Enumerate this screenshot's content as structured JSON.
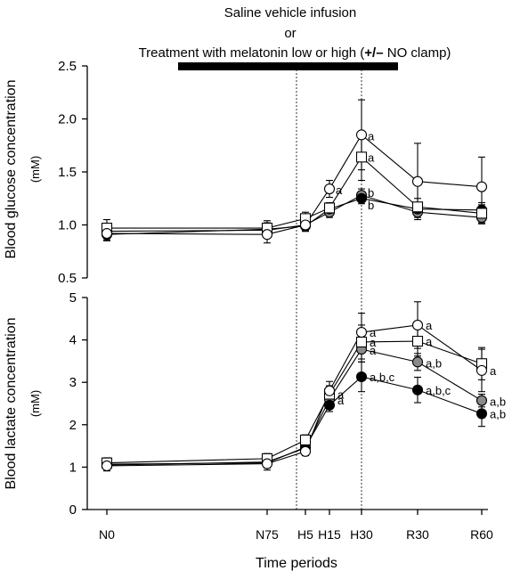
{
  "header": {
    "line1": "Saline vehicle infusion",
    "line2": "or",
    "line3_prefix": "Treatment with melatonin low or high (",
    "line3_bold": "+/–",
    "line3_suffix": " NO clamp)"
  },
  "chart_data": [
    {
      "type": "line",
      "ylabel": "Blood glucose concentration",
      "yunit": "(mM)",
      "ylim": [
        0.5,
        2.5
      ],
      "yticks": [
        "0.5",
        "1.0",
        "1.5",
        "2.0",
        "2.5"
      ],
      "series": [
        {
          "style": "open-circle",
          "values": [
            0.92,
            0.91,
            1.0,
            1.34,
            1.85,
            1.41,
            1.36
          ],
          "errors": [
            0.06,
            0.08,
            0.06,
            0.08,
            0.33,
            0.36,
            0.28
          ],
          "annotations": {
            "3": "a",
            "4": "a"
          }
        },
        {
          "style": "open-square",
          "values": [
            0.97,
            0.97,
            1.06,
            1.16,
            1.64,
            1.17,
            1.11
          ],
          "errors": [
            0.08,
            0.07,
            0.06,
            0.05,
            0.22,
            0.08,
            0.1
          ],
          "annotations": {
            "4": "a"
          }
        },
        {
          "style": "gray-circle",
          "values": [
            0.94,
            0.95,
            1.0,
            1.12,
            1.28,
            1.12,
            1.07
          ],
          "errors": [
            0.06,
            0.07,
            0.05,
            0.05,
            0.06,
            0.05,
            0.05
          ],
          "annotations": {
            "4": "b"
          }
        },
        {
          "style": "filled-circle",
          "values": [
            0.91,
            0.96,
            0.99,
            1.15,
            1.25,
            1.15,
            1.14
          ],
          "errors": [
            0.06,
            0.06,
            0.05,
            0.05,
            0.05,
            0.05,
            0.05
          ],
          "annotations": {
            "4": "b"
          }
        }
      ]
    },
    {
      "type": "line",
      "ylabel": "Blood lactate concentration",
      "yunit": "(mM)",
      "ylim": [
        0,
        5
      ],
      "yticks": [
        "0",
        "1",
        "2",
        "3",
        "4",
        "5"
      ],
      "series": [
        {
          "style": "open-circle",
          "values": [
            1.03,
            1.08,
            1.37,
            2.8,
            4.18,
            4.35,
            3.28
          ],
          "errors": [
            0.12,
            0.15,
            0.1,
            0.22,
            0.45,
            0.55,
            0.5
          ],
          "annotations": {
            "4": "a",
            "5": "a",
            "6": "a"
          }
        },
        {
          "style": "open-square",
          "values": [
            1.1,
            1.2,
            1.64,
            2.72,
            3.95,
            3.97,
            3.44
          ],
          "errors": [
            0.12,
            0.12,
            0.12,
            0.2,
            0.4,
            0.35,
            0.38
          ],
          "annotations": {
            "3": "a",
            "4": "a",
            "5": "a"
          }
        },
        {
          "style": "gray-circle",
          "values": [
            1.05,
            1.12,
            1.45,
            2.6,
            3.78,
            3.48,
            2.57
          ],
          "errors": [
            0.1,
            0.1,
            0.1,
            0.2,
            0.3,
            0.2,
            0.15
          ],
          "annotations": {
            "3": "a",
            "4": "a",
            "5": "a,b",
            "6": "a,b"
          }
        },
        {
          "style": "filled-circle",
          "values": [
            1.07,
            1.1,
            1.47,
            2.46,
            3.13,
            2.82,
            2.26
          ],
          "errors": [
            0.1,
            0.12,
            0.1,
            0.15,
            0.35,
            0.3,
            0.3
          ],
          "annotations": {
            "4": "a,b,c",
            "5": "a,b,c",
            "6": "a,b"
          }
        }
      ]
    }
  ],
  "x_axis": {
    "xlabel": "Time periods",
    "ticks": [
      "N0",
      "N75",
      "H5",
      "H15",
      "H30",
      "R30",
      "R60"
    ]
  }
}
